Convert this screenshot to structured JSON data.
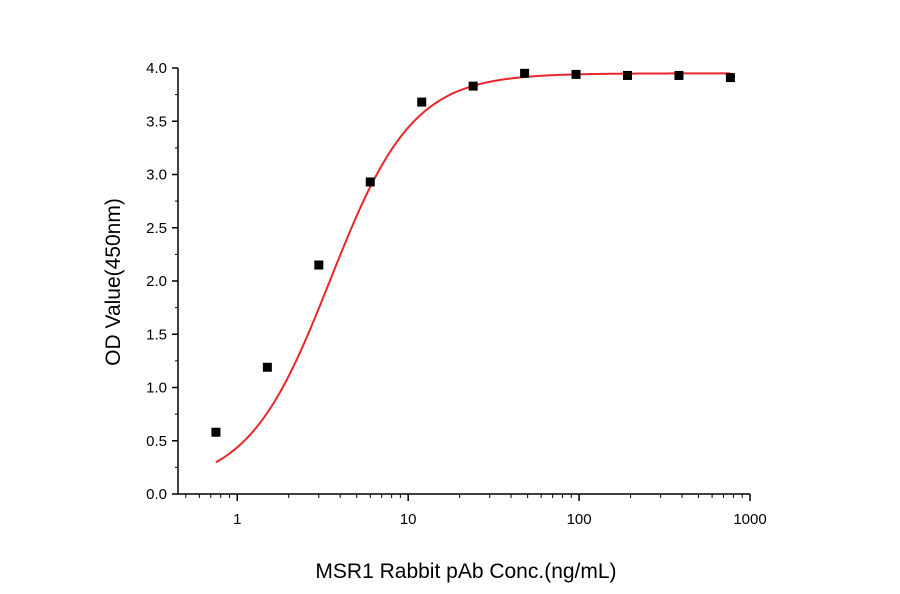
{
  "chart_data": {
    "type": "scatter",
    "title": "",
    "xlabel": "MSR1 Rabbit pAb Conc.(ng/mL)",
    "ylabel": "OD Value(450nm)",
    "x_scale": "log",
    "xlim": [
      0.45,
      1000
    ],
    "ylim": [
      0,
      4.0
    ],
    "x_ticks": [
      1,
      10,
      100,
      1000
    ],
    "x_tick_labels": [
      "1",
      "10",
      "100",
      "1000"
    ],
    "y_ticks": [
      0,
      0.5,
      1.0,
      1.5,
      2.0,
      2.5,
      3.0,
      3.5,
      4.0
    ],
    "y_tick_labels": [
      "0.0",
      "0.5",
      "1.0",
      "1.5",
      "2.0",
      "2.5",
      "3.0",
      "3.5",
      "4.0"
    ],
    "grid": false,
    "legend": "none",
    "series": [
      {
        "marker": "square",
        "color": "#000000",
        "x": [
          0.75,
          1.5,
          3.0,
          6.0,
          12.0,
          24.0,
          48.0,
          96.0,
          192.0,
          384.0,
          768.0
        ],
        "y": [
          0.58,
          1.19,
          2.15,
          2.93,
          3.68,
          3.83,
          3.95,
          3.94,
          3.93,
          3.93,
          3.91
        ]
      }
    ],
    "fit": {
      "type": "4PL",
      "color": "#e8262b",
      "bottom": 0.07,
      "top": 3.95,
      "ec50": 3.5,
      "hill": 1.8,
      "x_range": [
        0.75,
        768.0
      ]
    }
  }
}
